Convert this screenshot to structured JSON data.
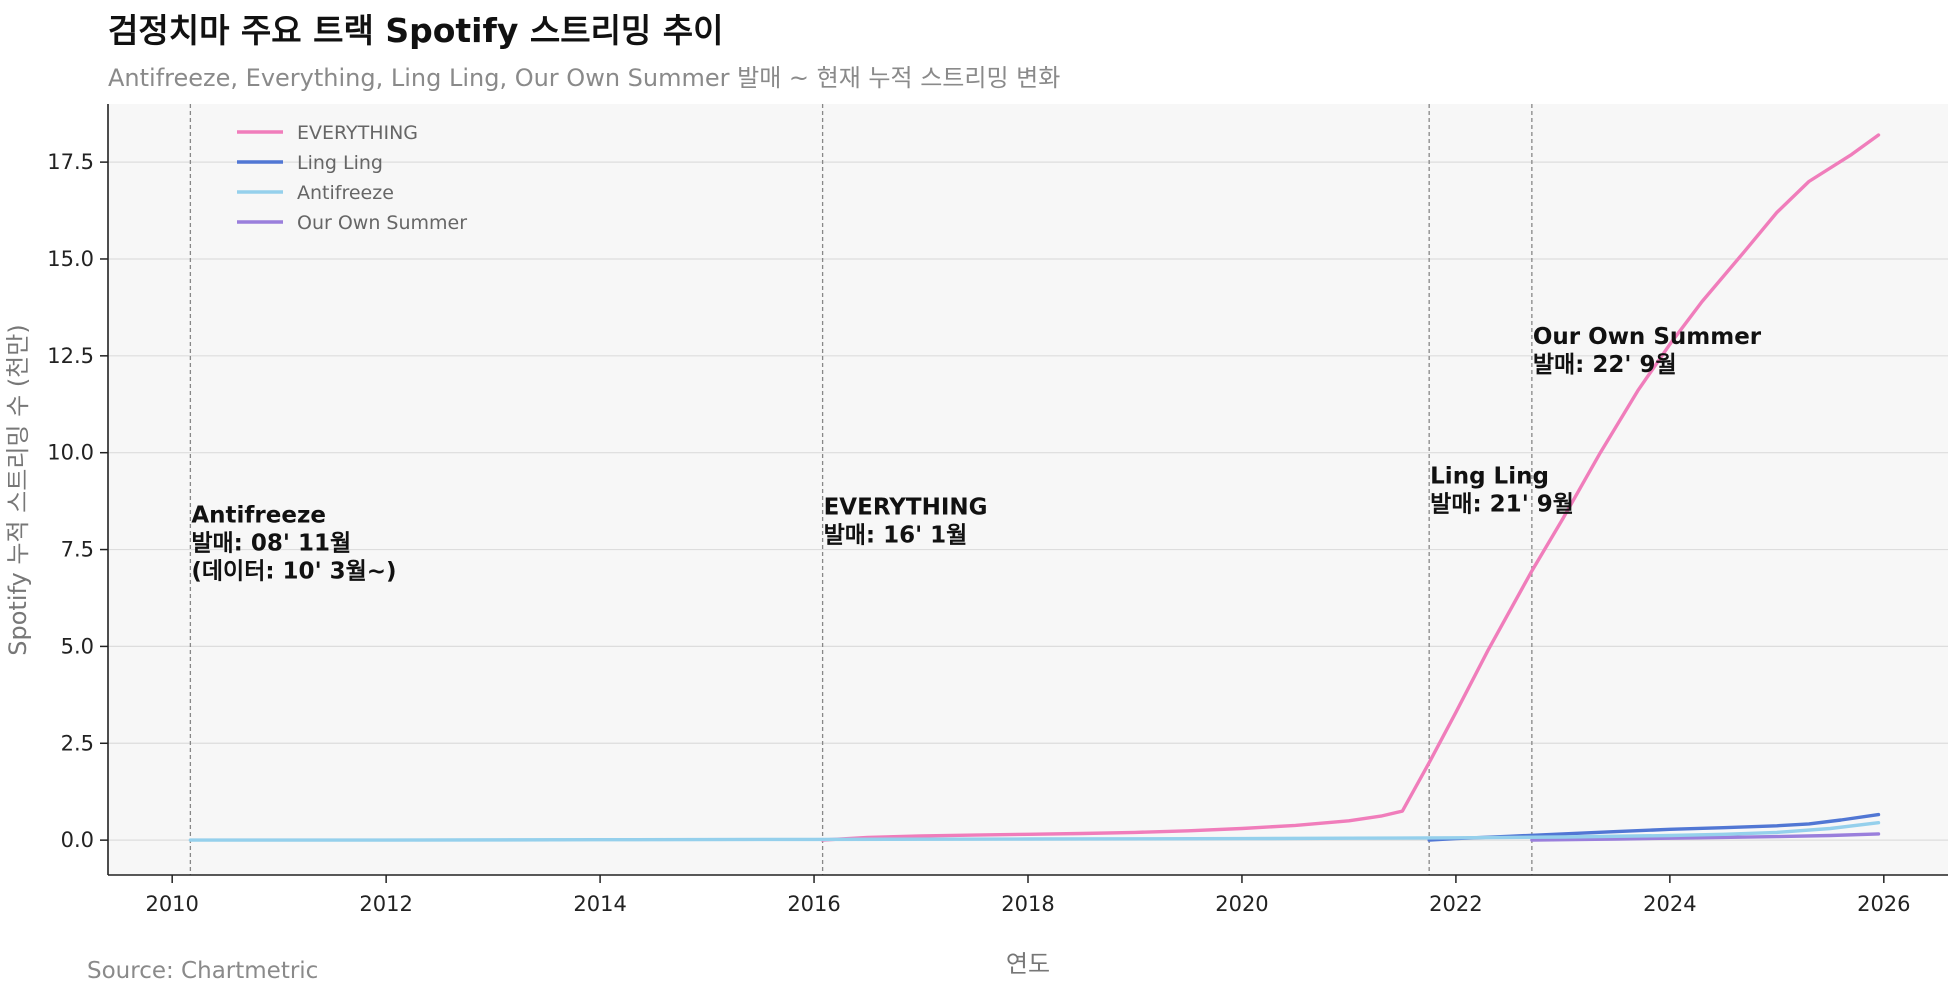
{
  "chart_data": {
    "type": "line",
    "title": "검정치마 주요 트랙 Spotify 스트리밍 추이",
    "subtitle": "Antifreeze, Everything, Ling Ling, Our Own Summer 발매 ~ 현재 누적 스트리밍 변화",
    "xlabel": "연도",
    "ylabel": "Spotify 누적 스트리밍 수 (천만)",
    "source": "Source: Chartmetric",
    "xlim": [
      2009.4,
      2026.6
    ],
    "ylim": [
      -0.9,
      19.0
    ],
    "xticks": [
      2010,
      2012,
      2014,
      2016,
      2018,
      2020,
      2022,
      2024,
      2026
    ],
    "xtick_labels": [
      "2010",
      "2012",
      "2014",
      "2016",
      "2018",
      "2020",
      "2022",
      "2024",
      "2026"
    ],
    "yticks": [
      0,
      2.5,
      5,
      7.5,
      10,
      12.5,
      15,
      17.5
    ],
    "ytick_labels": [
      "0.0",
      "2.5",
      "5.0",
      "7.5",
      "10.0",
      "12.5",
      "15.0",
      "17.5"
    ],
    "grid": true,
    "legend_position": "top-left",
    "series": [
      {
        "name": "EVERYTHING",
        "color": "#f07dbb",
        "x": [
          2016.08,
          2016.5,
          2017,
          2017.5,
          2018,
          2018.5,
          2019,
          2019.5,
          2020,
          2020.5,
          2021,
          2021.3,
          2021.5,
          2021.75,
          2022,
          2022.3,
          2022.7,
          2023,
          2023.35,
          2023.7,
          2024,
          2024.3,
          2024.7,
          2025,
          2025.3,
          2025.7,
          2025.95
        ],
        "values": [
          0.0,
          0.07,
          0.11,
          0.13,
          0.15,
          0.17,
          0.2,
          0.24,
          0.3,
          0.38,
          0.5,
          0.62,
          0.75,
          2.0,
          3.3,
          4.9,
          6.9,
          8.3,
          10.0,
          11.6,
          12.8,
          13.9,
          15.2,
          16.2,
          17.0,
          17.7,
          18.2
        ]
      },
      {
        "name": "Ling Ling",
        "color": "#5177d4",
        "x": [
          2021.75,
          2022,
          2022.5,
          2023,
          2023.5,
          2024,
          2024.5,
          2025,
          2025.3,
          2025.6,
          2025.95
        ],
        "values": [
          0.0,
          0.04,
          0.1,
          0.16,
          0.22,
          0.28,
          0.32,
          0.37,
          0.42,
          0.52,
          0.66
        ]
      },
      {
        "name": "Antifreeze",
        "color": "#95d0ec",
        "x": [
          2010.17,
          2012,
          2014,
          2016,
          2018,
          2020,
          2021,
          2022,
          2023,
          2024,
          2024.5,
          2025,
          2025.5,
          2025.95
        ],
        "values": [
          0.0,
          0.0,
          0.01,
          0.02,
          0.03,
          0.04,
          0.05,
          0.06,
          0.08,
          0.12,
          0.15,
          0.2,
          0.3,
          0.45
        ]
      },
      {
        "name": "Our Own Summer",
        "color": "#9a7fdc",
        "x": [
          2022.71,
          2023,
          2023.5,
          2024,
          2024.5,
          2025,
          2025.5,
          2025.95
        ],
        "values": [
          0.0,
          0.01,
          0.03,
          0.05,
          0.07,
          0.09,
          0.12,
          0.16
        ]
      }
    ],
    "release_markers": [
      {
        "x": 2010.17,
        "y": 8.2,
        "lines": [
          "Antifreeze",
          "발매: 08' 11월",
          "(데이터: 10' 3월~)"
        ]
      },
      {
        "x": 2016.08,
        "y": 8.4,
        "lines": [
          "EVERYTHING",
          "발매: 16' 1월"
        ]
      },
      {
        "x": 2021.75,
        "y": 9.2,
        "lines": [
          "Ling Ling",
          "발매: 21' 9월"
        ]
      },
      {
        "x": 2022.71,
        "y": 12.8,
        "lines": [
          "Our Own Summer",
          "발매: 22' 9월"
        ]
      }
    ]
  }
}
